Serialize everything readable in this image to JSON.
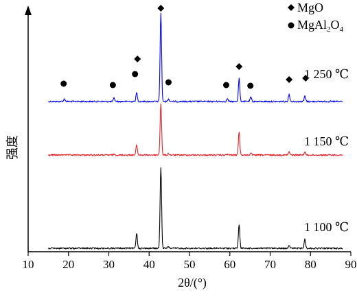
{
  "chart_data": {
    "type": "line",
    "xlabel_main": "2θ/(°)",
    "xlabel": "2θ/(°)",
    "ylabel": "强度",
    "xlim": [
      10,
      90
    ],
    "xticks": [
      10,
      20,
      30,
      40,
      50,
      60,
      70,
      80,
      90
    ],
    "grid": false,
    "legend": {
      "placement": "top-right",
      "entries": [
        {
          "marker": "diamond",
          "text": "MgO"
        },
        {
          "marker": "circle",
          "text_main": "MgAl",
          "text_sub1": "2",
          "text_mid": "O",
          "text_sub2": "4"
        }
      ]
    },
    "series": [
      {
        "name": "1 250 ℃",
        "color": "#0000ff",
        "peaks": [
          {
            "x": 19.0,
            "h": 0.03
          },
          {
            "x": 31.3,
            "h": 0.04
          },
          {
            "x": 36.9,
            "h": 0.1
          },
          {
            "x": 42.9,
            "h": 1.0
          },
          {
            "x": 44.8,
            "h": 0.03
          },
          {
            "x": 59.4,
            "h": 0.03
          },
          {
            "x": 62.3,
            "h": 0.26
          },
          {
            "x": 65.2,
            "h": 0.05
          },
          {
            "x": 74.7,
            "h": 0.08
          },
          {
            "x": 78.6,
            "h": 0.06
          }
        ]
      },
      {
        "name": "1 150 ℃",
        "color": "#e0242b",
        "peaks": [
          {
            "x": 19.0,
            "h": 0.01
          },
          {
            "x": 31.3,
            "h": 0.01
          },
          {
            "x": 36.9,
            "h": 0.13
          },
          {
            "x": 42.9,
            "h": 0.68
          },
          {
            "x": 44.8,
            "h": 0.02
          },
          {
            "x": 59.4,
            "h": 0.01
          },
          {
            "x": 62.3,
            "h": 0.31
          },
          {
            "x": 65.2,
            "h": 0.02
          },
          {
            "x": 74.7,
            "h": 0.04
          },
          {
            "x": 78.6,
            "h": 0.04
          }
        ]
      },
      {
        "name": "1 100 ℃",
        "color": "#000000",
        "peaks": [
          {
            "x": 36.9,
            "h": 0.19
          },
          {
            "x": 42.9,
            "h": 1.0
          },
          {
            "x": 44.8,
            "h": 0.02
          },
          {
            "x": 62.3,
            "h": 0.29
          },
          {
            "x": 74.7,
            "h": 0.04
          },
          {
            "x": 78.6,
            "h": 0.11
          }
        ]
      }
    ],
    "markers": [
      {
        "shape": "circle",
        "x": 18.8
      },
      {
        "shape": "circle",
        "x": 31.0
      },
      {
        "shape": "circle",
        "x": 36.5
      },
      {
        "shape": "diamond",
        "x": 37.1
      },
      {
        "shape": "diamond",
        "x": 42.9
      },
      {
        "shape": "circle",
        "x": 44.8
      },
      {
        "shape": "circle",
        "x": 59.1
      },
      {
        "shape": "diamond",
        "x": 62.3
      },
      {
        "shape": "circle",
        "x": 65.1
      },
      {
        "shape": "diamond",
        "x": 74.7
      },
      {
        "shape": "diamond",
        "x": 78.8
      }
    ]
  }
}
